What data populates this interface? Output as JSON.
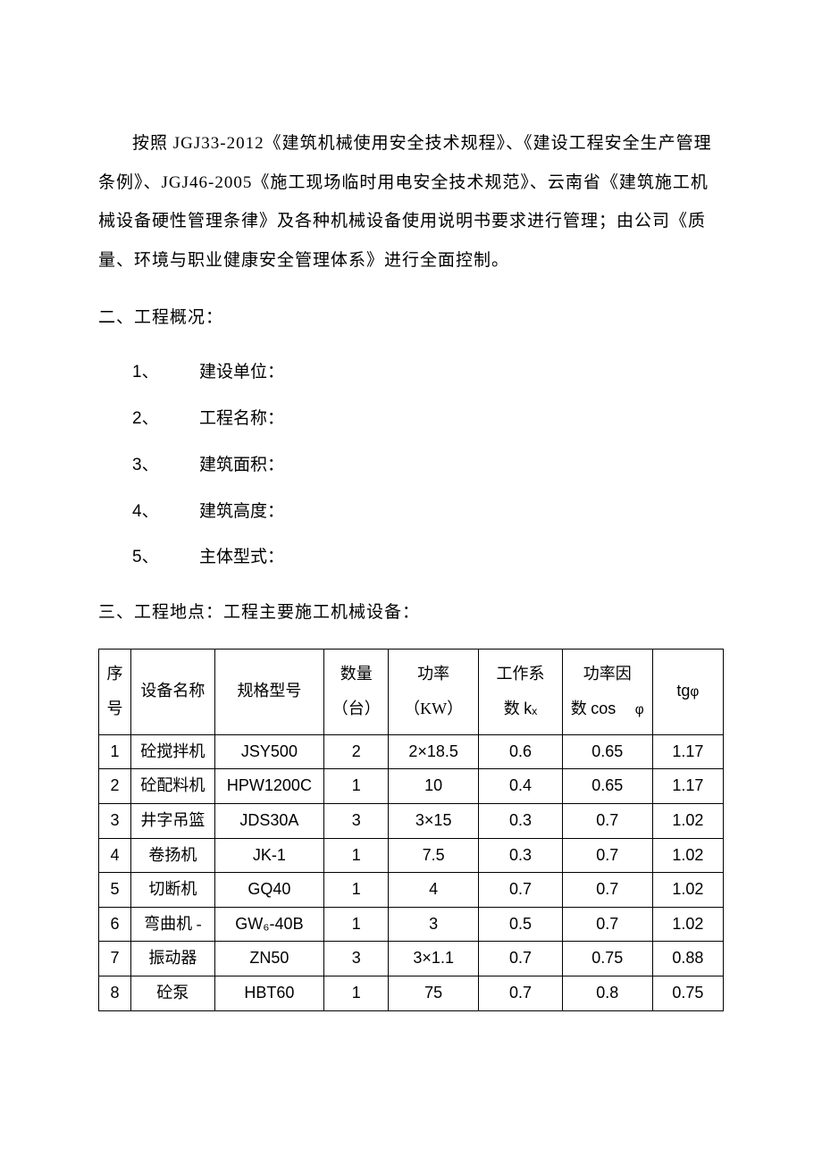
{
  "intro": {
    "text": "按照 JGJ33-2012《建筑机械使用安全技术规程》、《建设工程安全生产管理条例》、JGJ46-2005《施工现场临时用电安全技术规范》、云南省《建筑施工机械设备硬性管理条律》及各种机械设备使用说明书要求进行管理；由公司《质量、环境与职业健康安全管理体系》进行全面控制。"
  },
  "section2": {
    "heading": "二、工程概况：",
    "items": [
      {
        "num": "1、",
        "label": "建设单位："
      },
      {
        "num": "2、",
        "label": "工程名称："
      },
      {
        "num": "3、",
        "label": "建筑面积："
      },
      {
        "num": "4、",
        "label": "建筑高度："
      },
      {
        "num": "5、",
        "label": "主体型式："
      }
    ]
  },
  "section3": {
    "heading": "三、工程地点：工程主要施工机械设备："
  },
  "table": {
    "headers": {
      "seq": "序号",
      "name": "设备名称",
      "model": "规格型号",
      "qty_l1": "数量",
      "qty_l2": "（台）",
      "pw_l1": "功率",
      "pw_l2": "（KW）",
      "kx_l1": "工作系",
      "kx_l2": "数",
      "kx_suffix": "kₓ",
      "cos_l1": "功率因",
      "cos_l2": "数",
      "cos_suffix": "cos",
      "tg": "tg"
    },
    "rows": [
      {
        "seq": "1",
        "name": "砼搅拌机",
        "model": "JSY500",
        "qty": "2",
        "pw": "2×18.5",
        "kx": "0.6",
        "cos": "0.65",
        "tg": "1.17"
      },
      {
        "seq": "2",
        "name": "砼配料机",
        "model": "HPW1200C",
        "qty": "1",
        "pw": "10",
        "kx": "0.4",
        "cos": "0.65",
        "tg": "1.17"
      },
      {
        "seq": "3",
        "name": "井字吊篮",
        "model": "JDS30A",
        "qty": "3",
        "pw": "3×15",
        "kx": "0.3",
        "cos": "0.7",
        "tg": "1.02"
      },
      {
        "seq": "4",
        "name": "卷扬机",
        "model": "JK-1",
        "qty": "1",
        "pw": "7.5",
        "kx": "0.3",
        "cos": "0.7",
        "tg": "1.02"
      },
      {
        "seq": "5",
        "name": "切断机",
        "model": "GQ40",
        "qty": "1",
        "pw": "4",
        "kx": "0.7",
        "cos": "0.7",
        "tg": "1.02"
      },
      {
        "seq": "6",
        "name": "弯曲机 -",
        "model": "GW₆-40B",
        "qty": "1",
        "pw": "3",
        "kx": "0.5",
        "cos": "0.7",
        "tg": "1.02"
      },
      {
        "seq": "7",
        "name": "振动器",
        "model": "ZN50",
        "qty": "3",
        "pw": "3×1.1",
        "kx": "0.7",
        "cos": "0.75",
        "tg": "0.88"
      },
      {
        "seq": "8",
        "name": "砼泵",
        "model": "HBT60",
        "qty": "1",
        "pw": "75",
        "kx": "0.7",
        "cos": "0.8",
        "tg": "0.75"
      }
    ]
  }
}
